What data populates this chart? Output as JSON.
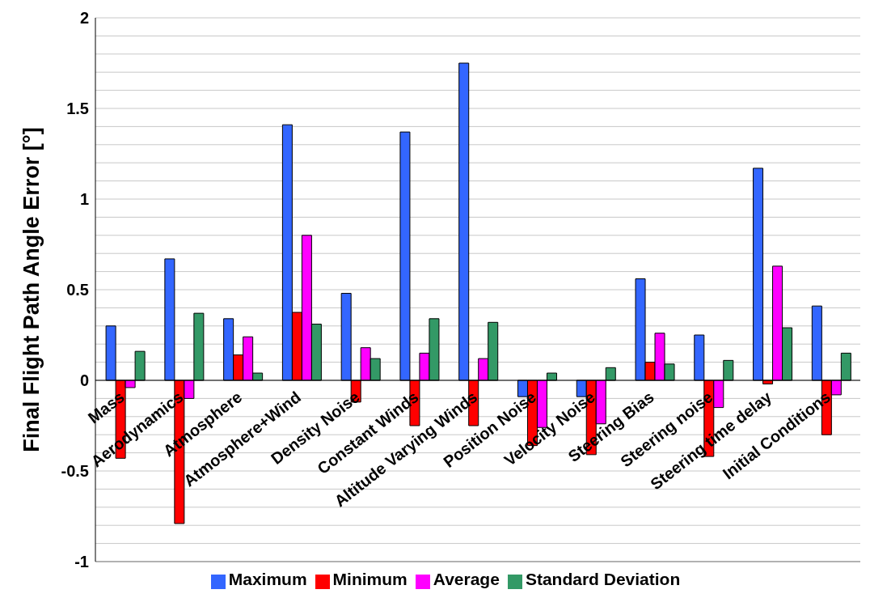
{
  "chart_data": {
    "type": "bar",
    "ylabel": "Final Flight Path Angle Error [°]",
    "categories": [
      "Mass",
      "Aerodynamics",
      "Atmosphere",
      "Atmosphere+Wind",
      "Density Noise",
      "Constant Winds",
      "Altitude Varying Winds",
      "Position Noise",
      "Velocity Noise",
      "Steering Bias",
      "Steering noise",
      "Steering time delay",
      "Initial Conditions"
    ],
    "series": [
      {
        "name": "Maximum",
        "color": "#3366ff",
        "values": [
          0.3,
          0.67,
          0.34,
          1.41,
          0.48,
          1.37,
          1.75,
          -0.09,
          -0.09,
          0.56,
          0.25,
          1.17,
          0.41
        ]
      },
      {
        "name": "Minimum",
        "color": "#ff0000",
        "values": [
          -0.43,
          -0.79,
          0.14,
          0.375,
          -0.12,
          -0.25,
          -0.25,
          -0.36,
          -0.41,
          0.1,
          -0.42,
          -0.02,
          -0.3
        ]
      },
      {
        "name": "Average",
        "color": "#ff00ff",
        "values": [
          -0.04,
          -0.1,
          0.24,
          0.8,
          0.18,
          0.15,
          0.12,
          -0.26,
          -0.24,
          0.26,
          -0.15,
          0.63,
          -0.08
        ]
      },
      {
        "name": "Standard Deviation",
        "color": "#339966",
        "values": [
          0.16,
          0.37,
          0.04,
          0.31,
          0.12,
          0.34,
          0.32,
          0.04,
          0.07,
          0.09,
          0.11,
          0.29,
          0.15
        ]
      }
    ],
    "ylim": [
      -1,
      2
    ],
    "yticks": [
      -1,
      {
        "value": -0.9,
        "label": null
      },
      {
        "value": -0.8,
        "label": null
      },
      {
        "value": -0.7,
        "label": null
      },
      {
        "value": -0.6,
        "label": null
      },
      -0.5,
      {
        "value": -0.4,
        "label": null
      },
      {
        "value": -0.3,
        "label": null
      },
      {
        "value": -0.2,
        "label": null
      },
      {
        "value": -0.1,
        "label": null
      },
      0,
      {
        "value": 0.1,
        "label": null
      },
      {
        "value": 0.2,
        "label": null
      },
      {
        "value": 0.3,
        "label": null
      },
      {
        "value": 0.4,
        "label": null
      },
      0.5,
      {
        "value": 0.6,
        "label": null
      },
      {
        "value": 0.7,
        "label": null
      },
      {
        "value": 0.8,
        "label": null
      },
      {
        "value": 0.9,
        "label": null
      },
      1,
      {
        "value": 1.1,
        "label": null
      },
      {
        "value": 1.2,
        "label": null
      },
      {
        "value": 1.3,
        "label": null
      },
      {
        "value": 1.4,
        "label": null
      },
      1.5,
      {
        "value": 1.6,
        "label": null
      },
      {
        "value": 1.7,
        "label": null
      },
      {
        "value": 1.8,
        "label": null
      },
      {
        "value": 1.9,
        "label": null
      },
      2
    ],
    "grid": "y",
    "legend": "bottom"
  }
}
